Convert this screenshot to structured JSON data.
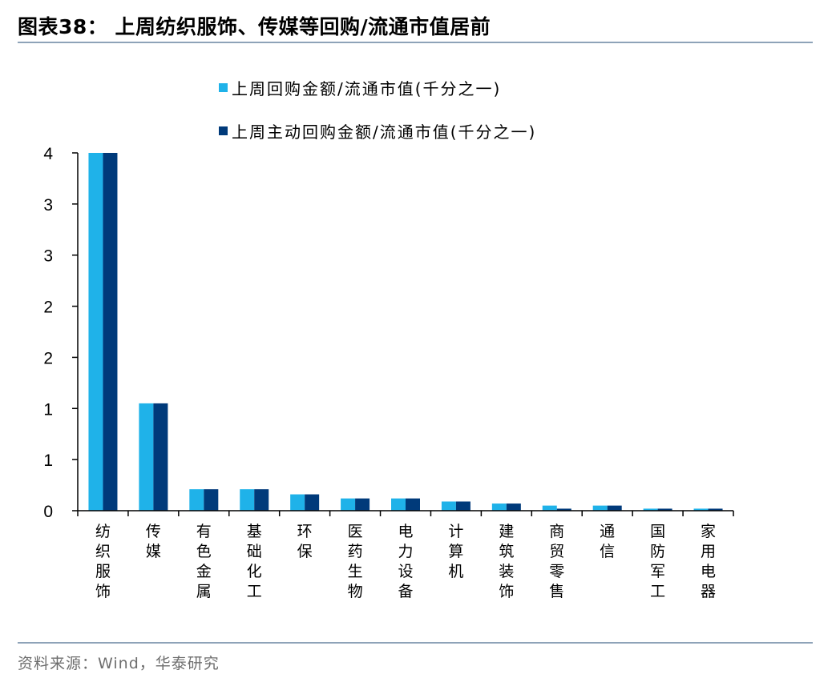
{
  "header": {
    "title": "图表38：  上周纺织服饰、传媒等回购/流通市值居前"
  },
  "footer": {
    "source": "资料来源：Wind，华泰研究"
  },
  "chart_data": {
    "type": "bar",
    "categories": [
      "纺织服饰",
      "传媒",
      "有色金属",
      "基础化工",
      "环保",
      "医药生物",
      "电力设备",
      "计算机",
      "建筑装饰",
      "商贸零售",
      "通信",
      "国防军工",
      "家用电器"
    ],
    "series": [
      {
        "name": "上周回购金额/流通市值(千分之一)",
        "color": "#1fb2e9",
        "values": [
          3.5,
          1.05,
          0.21,
          0.21,
          0.16,
          0.12,
          0.12,
          0.09,
          0.07,
          0.05,
          0.05,
          0.02,
          0.02
        ]
      },
      {
        "name": "上周主动回购金额/流通市值(千分之一)",
        "color": "#003a7a",
        "values": [
          3.5,
          1.05,
          0.21,
          0.21,
          0.16,
          0.12,
          0.12,
          0.09,
          0.07,
          0.02,
          0.05,
          0.02,
          0.02
        ]
      }
    ],
    "yticks": [
      "0",
      "1",
      "1",
      "2",
      "2",
      "3",
      "3",
      "4"
    ],
    "ylim": [
      0,
      3.5
    ],
    "legend_position": "top",
    "grid": false
  }
}
